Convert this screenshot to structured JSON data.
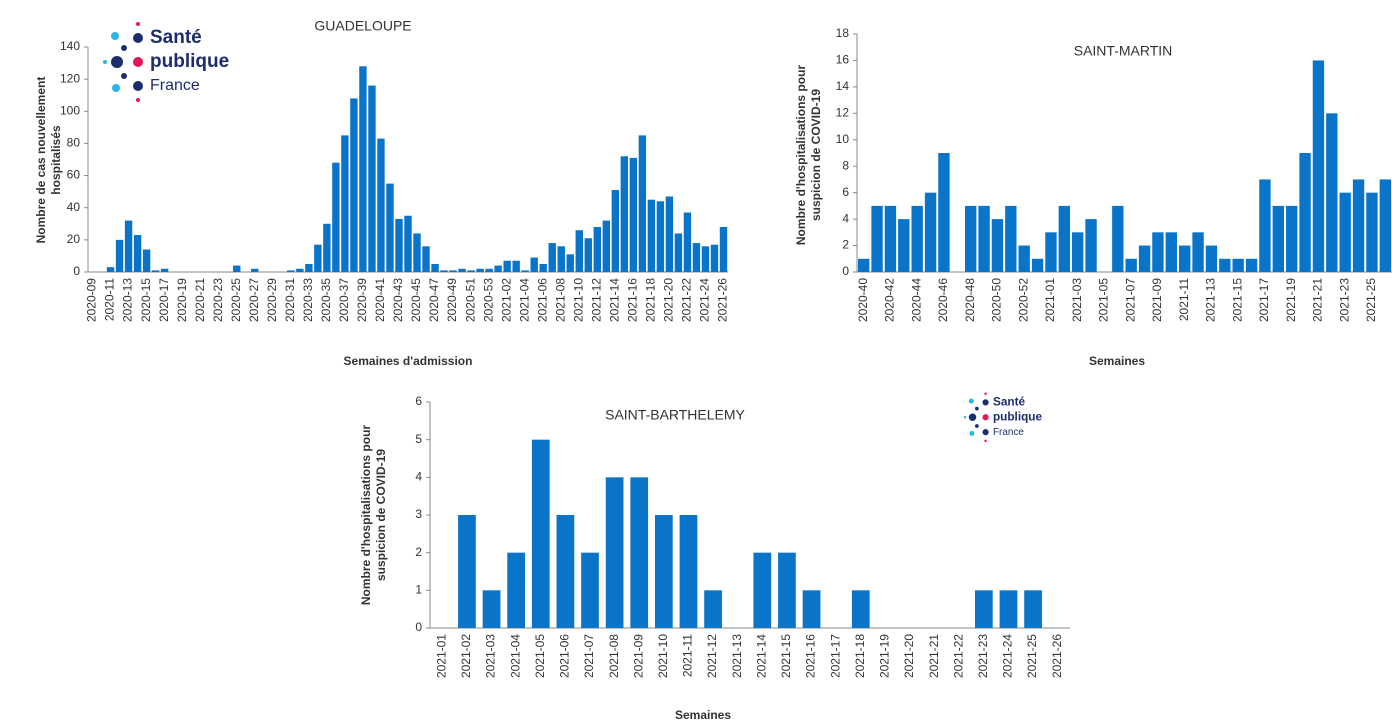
{
  "logo": [
    "Santé",
    "publique",
    "France"
  ],
  "chart_data": [
    {
      "type": "bar",
      "title": "GUADELOUPE",
      "xlabel": "Semaines d'admission",
      "ylabel": [
        "Nombre de cas nouvellement",
        "hospitalisés"
      ],
      "color": "#0a74c8",
      "categories": [
        "2020-09",
        null,
        "2020-11",
        null,
        "2020-13",
        null,
        "2020-15",
        null,
        "2020-17",
        null,
        "2020-19",
        null,
        "2020-21",
        null,
        "2020-23",
        null,
        "2020-25",
        null,
        "2020-27",
        null,
        "2020-29",
        null,
        "2020-31",
        null,
        "2020-33",
        null,
        "2020-35",
        null,
        "2020-37",
        null,
        "2020-39",
        null,
        "2020-41",
        null,
        "2020-43",
        null,
        "2020-45",
        null,
        "2020-47",
        null,
        "2020-49",
        null,
        "2020-51",
        null,
        "2020-53",
        null,
        "2021-02",
        null,
        "2021-04",
        null,
        "2021-06",
        null,
        "2021-08",
        null,
        "2021-10",
        null,
        "2021-12",
        null,
        "2021-14",
        null,
        "2021-16",
        null,
        "2021-18",
        null,
        "2021-20",
        null,
        "2021-22",
        null,
        "2021-24",
        null,
        "2021-26"
      ],
      "values": [
        0,
        0,
        3,
        20,
        32,
        23,
        14,
        1,
        2,
        0,
        0,
        0,
        0,
        0,
        0,
        0,
        4,
        0,
        2,
        0,
        0,
        0,
        1,
        2,
        5,
        17,
        30,
        68,
        85,
        108,
        128,
        116,
        83,
        55,
        33,
        35,
        24,
        16,
        5,
        1,
        1,
        2,
        1,
        2,
        2,
        4,
        7,
        7,
        1,
        9,
        5,
        18,
        16,
        11,
        26,
        21,
        28,
        32,
        51,
        72,
        71,
        85,
        45,
        44,
        47,
        24,
        37,
        18,
        16,
        17,
        28
      ],
      "ylim": [
        0,
        140
      ],
      "yticks": [
        0,
        20,
        40,
        60,
        80,
        100,
        120,
        140
      ]
    },
    {
      "type": "bar",
      "title": "SAINT-MARTIN",
      "xlabel": "Semaines",
      "ylabel": [
        "Nombre d'hospitalisations pour",
        "suspicion de COVID-19"
      ],
      "color": "#0a74c8",
      "categories": [
        "2020-40",
        null,
        "2020-42",
        null,
        "2020-44",
        null,
        "2020-46",
        null,
        "2020-48",
        null,
        "2020-50",
        null,
        "2020-52",
        null,
        "2021-01",
        null,
        "2021-03",
        null,
        "2021-05",
        null,
        "2021-07",
        null,
        "2021-09",
        null,
        "2021-11",
        null,
        "2021-13",
        null,
        "2021-15",
        null,
        "2021-17",
        null,
        "2021-19",
        null,
        "2021-21",
        null,
        "2021-23",
        null,
        "2021-25",
        null
      ],
      "values": [
        1,
        5,
        5,
        4,
        5,
        6,
        9,
        0,
        5,
        5,
        4,
        5,
        2,
        1,
        3,
        5,
        3,
        4,
        0,
        5,
        1,
        2,
        3,
        3,
        2,
        3,
        2,
        1,
        1,
        1,
        7,
        5,
        5,
        9,
        16,
        12,
        6,
        7,
        6,
        7
      ],
      "ylim": [
        0,
        18
      ],
      "yticks": [
        0,
        2,
        4,
        6,
        8,
        10,
        12,
        14,
        16,
        18
      ]
    },
    {
      "type": "bar",
      "title": "SAINT-BARTHELEMY",
      "xlabel": "Semaines",
      "ylabel": [
        "Nombre d'hospitalisations pour",
        "suspicion de COVID-19"
      ],
      "color": "#0a74c8",
      "categories": [
        "2021-01",
        "2021-02",
        "2021-03",
        "2021-04",
        "2021-05",
        "2021-06",
        "2021-07",
        "2021-08",
        "2021-09",
        "2021-10",
        "2021-11",
        "2021-12",
        "2021-13",
        "2021-14",
        "2021-15",
        "2021-16",
        "2021-17",
        "2021-18",
        "2021-19",
        "2021-20",
        "2021-21",
        "2021-22",
        "2021-23",
        "2021-24",
        "2021-25",
        "2021-26"
      ],
      "values": [
        0,
        3,
        1,
        2,
        5,
        3,
        2,
        4,
        4,
        3,
        3,
        1,
        0,
        2,
        2,
        1,
        0,
        1,
        0,
        0,
        0,
        0,
        1,
        1,
        1,
        0
      ],
      "ylim": [
        0,
        6
      ],
      "yticks": [
        0,
        1,
        2,
        3,
        4,
        5,
        6
      ]
    }
  ]
}
